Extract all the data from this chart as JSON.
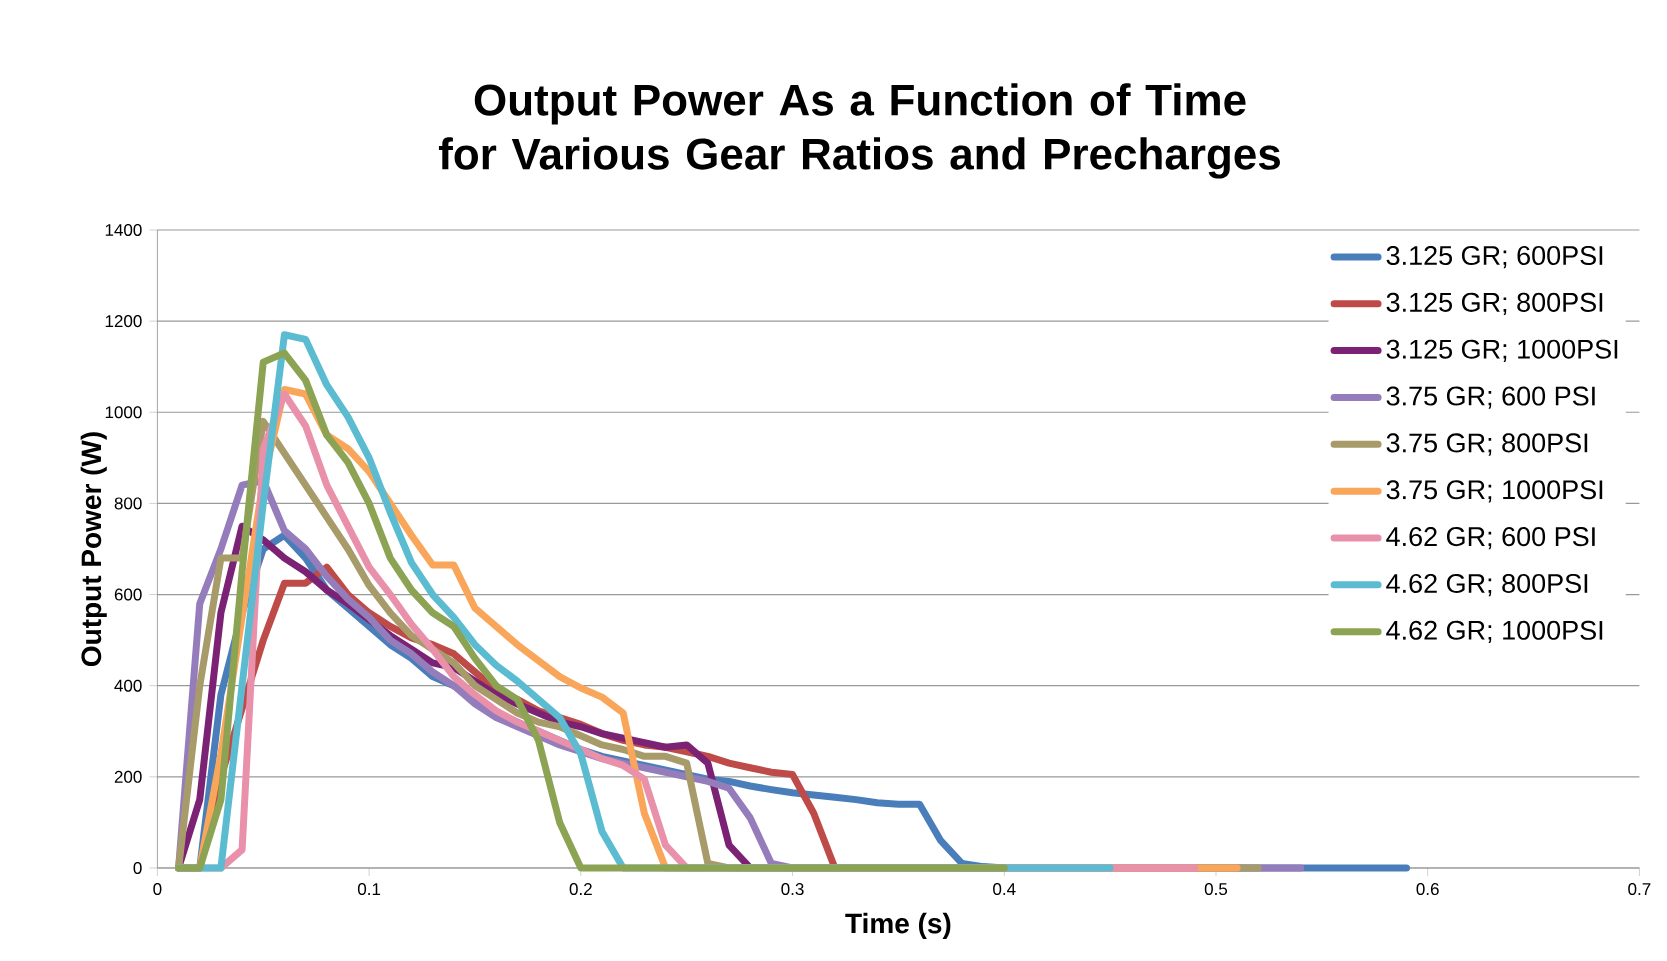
{
  "chart_data": {
    "type": "line",
    "title": "Output Power As a Function of Time for Various Gear Ratios and Precharges",
    "xlabel": "Time (s)",
    "ylabel": "Output Power (W)",
    "xlim": [
      0,
      0.7
    ],
    "xticks": [
      0,
      0.1,
      0.2,
      0.3,
      0.4,
      0.5,
      0.6,
      0.7
    ],
    "ylim": [
      0,
      1400
    ],
    "yticks": [
      0,
      200,
      400,
      600,
      800,
      1000,
      1200,
      1400
    ],
    "grid": "y",
    "legend": "top right",
    "marker": "none",
    "line_style": "solid",
    "series": [
      {
        "name": "3.125 GR; 600PSI",
        "color": "#4a7ebb",
        "x": [
          0.01,
          0.02,
          0.03,
          0.04,
          0.05,
          0.06,
          0.07,
          0.08,
          0.09,
          0.1,
          0.11,
          0.12,
          0.13,
          0.14,
          0.15,
          0.16,
          0.17,
          0.18,
          0.19,
          0.2,
          0.21,
          0.22,
          0.23,
          0.24,
          0.25,
          0.26,
          0.27,
          0.28,
          0.29,
          0.3,
          0.31,
          0.32,
          0.33,
          0.34,
          0.35,
          0.36,
          0.37,
          0.38,
          0.39,
          0.4,
          0.59
        ],
        "values": [
          0,
          0,
          380,
          560,
          700,
          730,
          680,
          610,
          570,
          530,
          490,
          460,
          420,
          400,
          370,
          340,
          320,
          300,
          280,
          260,
          245,
          235,
          225,
          215,
          205,
          195,
          190,
          180,
          172,
          165,
          160,
          155,
          150,
          143,
          140,
          140,
          60,
          10,
          3,
          0,
          0
        ]
      },
      {
        "name": "3.125 GR; 800PSI",
        "color": "#be4b48",
        "x": [
          0.01,
          0.02,
          0.03,
          0.04,
          0.05,
          0.06,
          0.07,
          0.08,
          0.09,
          0.1,
          0.11,
          0.12,
          0.13,
          0.14,
          0.15,
          0.16,
          0.17,
          0.18,
          0.19,
          0.2,
          0.21,
          0.22,
          0.23,
          0.24,
          0.25,
          0.26,
          0.27,
          0.28,
          0.29,
          0.3,
          0.31,
          0.32,
          0.4
        ],
        "values": [
          0,
          0,
          200,
          350,
          500,
          625,
          625,
          660,
          600,
          560,
          530,
          505,
          490,
          470,
          430,
          390,
          370,
          345,
          330,
          315,
          295,
          280,
          270,
          265,
          255,
          245,
          230,
          220,
          210,
          205,
          120,
          0,
          0
        ]
      },
      {
        "name": "3.125 GR; 1000PSI",
        "color": "#7b2275",
        "x": [
          0.01,
          0.02,
          0.03,
          0.04,
          0.05,
          0.06,
          0.07,
          0.08,
          0.09,
          0.1,
          0.11,
          0.12,
          0.13,
          0.14,
          0.15,
          0.16,
          0.17,
          0.18,
          0.19,
          0.2,
          0.21,
          0.22,
          0.23,
          0.24,
          0.25,
          0.26,
          0.27,
          0.28,
          0.4
        ],
        "values": [
          0,
          150,
          560,
          750,
          720,
          680,
          650,
          610,
          580,
          545,
          510,
          480,
          450,
          440,
          410,
          380,
          360,
          340,
          320,
          310,
          295,
          285,
          275,
          265,
          270,
          230,
          50,
          0,
          0
        ]
      },
      {
        "name": "3.75 GR; 600 PSI",
        "color": "#957dbb",
        "x": [
          0.01,
          0.02,
          0.03,
          0.04,
          0.05,
          0.06,
          0.07,
          0.08,
          0.09,
          0.1,
          0.11,
          0.12,
          0.13,
          0.14,
          0.15,
          0.16,
          0.17,
          0.18,
          0.19,
          0.2,
          0.21,
          0.22,
          0.23,
          0.24,
          0.25,
          0.26,
          0.27,
          0.28,
          0.29,
          0.3,
          0.54
        ],
        "values": [
          0,
          580,
          700,
          840,
          850,
          740,
          700,
          640,
          590,
          550,
          500,
          470,
          430,
          400,
          360,
          330,
          310,
          290,
          270,
          255,
          240,
          230,
          220,
          210,
          200,
          190,
          175,
          110,
          10,
          0,
          0
        ]
      },
      {
        "name": "3.75 GR; 800PSI",
        "color": "#a89b6a",
        "x": [
          0.01,
          0.02,
          0.03,
          0.04,
          0.05,
          0.06,
          0.07,
          0.08,
          0.09,
          0.1,
          0.11,
          0.12,
          0.13,
          0.14,
          0.15,
          0.16,
          0.17,
          0.18,
          0.19,
          0.2,
          0.21,
          0.22,
          0.23,
          0.24,
          0.25,
          0.26,
          0.27,
          0.52
        ],
        "values": [
          0,
          400,
          680,
          680,
          980,
          910,
          840,
          770,
          700,
          620,
          560,
          510,
          480,
          450,
          400,
          370,
          340,
          320,
          310,
          290,
          270,
          260,
          245,
          245,
          230,
          10,
          0,
          0
        ]
      },
      {
        "name": "3.75 GR; 1000PSI",
        "color": "#f9a65a",
        "x": [
          0.01,
          0.02,
          0.03,
          0.04,
          0.05,
          0.06,
          0.07,
          0.08,
          0.09,
          0.1,
          0.11,
          0.12,
          0.13,
          0.14,
          0.15,
          0.16,
          0.17,
          0.18,
          0.19,
          0.2,
          0.21,
          0.22,
          0.23,
          0.24,
          0.51
        ],
        "values": [
          0,
          0,
          250,
          550,
          850,
          1050,
          1040,
          950,
          920,
          870,
          800,
          730,
          665,
          665,
          570,
          530,
          490,
          455,
          420,
          395,
          375,
          340,
          120,
          0,
          0
        ]
      },
      {
        "name": "4.62 GR; 600 PSI",
        "color": "#e991ab",
        "x": [
          0.01,
          0.02,
          0.03,
          0.04,
          0.05,
          0.06,
          0.07,
          0.08,
          0.09,
          0.1,
          0.11,
          0.12,
          0.13,
          0.14,
          0.15,
          0.16,
          0.17,
          0.18,
          0.19,
          0.2,
          0.21,
          0.22,
          0.23,
          0.24,
          0.25,
          0.49
        ],
        "values": [
          0,
          0,
          0,
          40,
          920,
          1040,
          970,
          840,
          750,
          660,
          600,
          535,
          480,
          420,
          380,
          345,
          320,
          300,
          280,
          260,
          240,
          225,
          195,
          50,
          0,
          0
        ]
      },
      {
        "name": "4.62 GR; 800PSI",
        "color": "#5bbcd1",
        "x": [
          0.01,
          0.02,
          0.03,
          0.04,
          0.05,
          0.06,
          0.07,
          0.08,
          0.09,
          0.1,
          0.11,
          0.12,
          0.13,
          0.14,
          0.15,
          0.16,
          0.17,
          0.18,
          0.19,
          0.2,
          0.21,
          0.22,
          0.45
        ],
        "values": [
          0,
          0,
          0,
          400,
          800,
          1170,
          1160,
          1060,
          990,
          900,
          780,
          670,
          600,
          550,
          490,
          445,
          410,
          370,
          330,
          250,
          80,
          0,
          0
        ]
      },
      {
        "name": "4.62 GR; 1000PSI",
        "color": "#8ca353",
        "x": [
          0.01,
          0.02,
          0.03,
          0.04,
          0.05,
          0.06,
          0.07,
          0.08,
          0.09,
          0.1,
          0.11,
          0.12,
          0.13,
          0.14,
          0.15,
          0.16,
          0.17,
          0.18,
          0.19,
          0.2,
          0.4
        ],
        "values": [
          0,
          0,
          150,
          650,
          1110,
          1130,
          1070,
          950,
          890,
          800,
          680,
          610,
          560,
          530,
          460,
          400,
          370,
          280,
          100,
          0,
          0
        ]
      }
    ]
  }
}
